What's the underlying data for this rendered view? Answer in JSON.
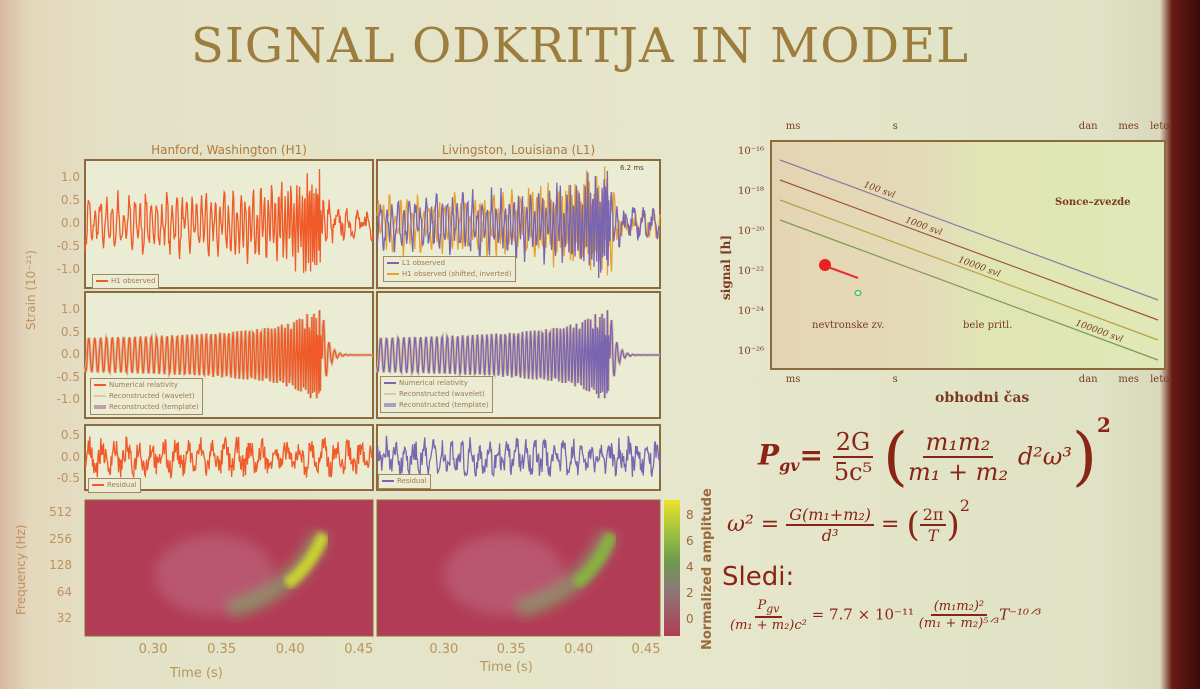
{
  "title": "SIGNAL ODKRITJA IN MODEL",
  "ligo": {
    "detectors": [
      {
        "name": "Hanford, Washington (H1)",
        "color": "#f05a28",
        "legend_row1": [
          "H1 observed"
        ],
        "legend_row2": [
          "Numerical relativity",
          "Reconstructed (wavelet)",
          "Reconstructed (template)"
        ],
        "legend_row3": [
          "Residual"
        ]
      },
      {
        "name": "Livingston, Louisiana (L1)",
        "color": "#7a66b0",
        "legend_row1": [
          "L1 observed",
          "H1 observed (shifted, inverted)"
        ],
        "legend_row2": [
          "Numerical relativity",
          "Reconstructed (wavelet)",
          "Reconstructed (template)"
        ],
        "legend_row3": [
          "Residual"
        ]
      }
    ],
    "annotation": "6.2 ms",
    "strain_label": "Strain (10⁻²¹)",
    "strain_ticks": [
      "1.0",
      "0.5",
      "0.0",
      "-0.5",
      "-1.0"
    ],
    "residual_ticks": [
      "0.5",
      "0.0",
      "-0.5"
    ],
    "freq_label": "Frequency (Hz)",
    "freq_ticks": [
      "512",
      "256",
      "128",
      "64",
      "32"
    ],
    "time_ticks": [
      "0.30",
      "0.35",
      "0.40",
      "0.45"
    ],
    "time_label": "Time (s)",
    "colorbar_label": "Normalized amplitude",
    "colorbar_ticks": [
      "8",
      "6",
      "4",
      "2",
      "0"
    ],
    "time_range": [
      0.25,
      0.46
    ]
  },
  "gw_chart": {
    "top_ticks": [
      "ms",
      "s",
      "dan",
      "mes",
      "leto"
    ],
    "bottom_ticks": [
      "ms",
      "s",
      "dan",
      "mes",
      "leto"
    ],
    "y_ticks": [
      "10⁻¹⁶",
      "10⁻¹⁸",
      "10⁻²⁰",
      "10⁻²²",
      "10⁻²⁴",
      "10⁻²⁶"
    ],
    "ylabel": "signal [h]",
    "xlabel": "obhodni čas",
    "lines": [
      {
        "label": "100 svl",
        "color": "#8a7aa0"
      },
      {
        "label": "1000 svl",
        "color": "#a05a3a"
      },
      {
        "label": "10000 svl",
        "color": "#b8a040"
      },
      {
        "label": "100000 svl",
        "color": "#7a9a50"
      }
    ],
    "regions": [
      "Sonce–zvezde",
      "nevtronske zv.",
      "bele pritl."
    ]
  },
  "equations": {
    "p_lhs": "P",
    "p_sub": "gv",
    "eq": "=",
    "f1_num": "2G",
    "f1_den": "5c⁵",
    "f2_num": "m₁m₂",
    "f2_den": "m₁ + m₂",
    "tail": "d²ω³",
    "power": "2",
    "w_lhs": "ω² =",
    "w_num": "G(m₁+m₂)",
    "w_den": "d³",
    "w_eq2": "=",
    "w_pnum": "2π",
    "w_pden": "T",
    "w_pow": "2",
    "sledi": "Sledi:",
    "r_num": "P",
    "r_num_sub": "gv",
    "r_den": "(m₁ + m₂)c²",
    "r_mid": "= 7.7 × 10⁻¹¹",
    "r2_num": "(m₁m₂)²",
    "r2_den": "(m₁ + m₂)⁵ᐟ³",
    "r_tail": "T⁻¹⁰ᐟ³"
  }
}
